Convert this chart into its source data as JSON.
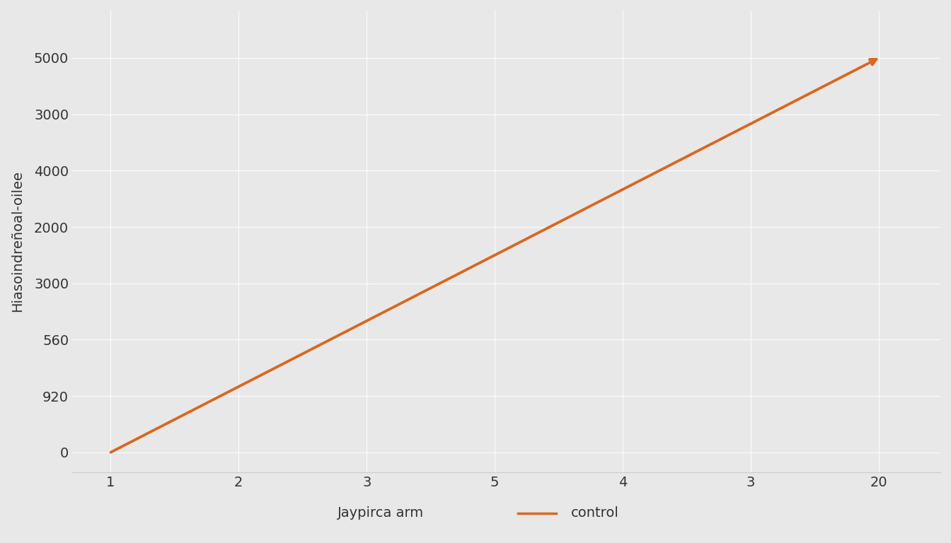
{
  "title": "",
  "xlabel": "Jaypirca arm",
  "ylabel": "Hiasoindreñoal-oilee",
  "background_color": "#e8e8e8",
  "plot_bg_color": "#e8e8e8",
  "line_color": "#d96820",
  "line_width": 2.5,
  "x_ticks_labels": [
    "1",
    "2",
    "3",
    "5",
    "4",
    "3",
    "20"
  ],
  "y_ticks_labels": [
    "0",
    "920",
    "560",
    "3000",
    "2000",
    "4000",
    "3000",
    "5000"
  ],
  "legend_label": "control",
  "legend_x_label": "Jaypirca arm",
  "figsize": [
    13.44,
    7.68
  ],
  "dpi": 100
}
